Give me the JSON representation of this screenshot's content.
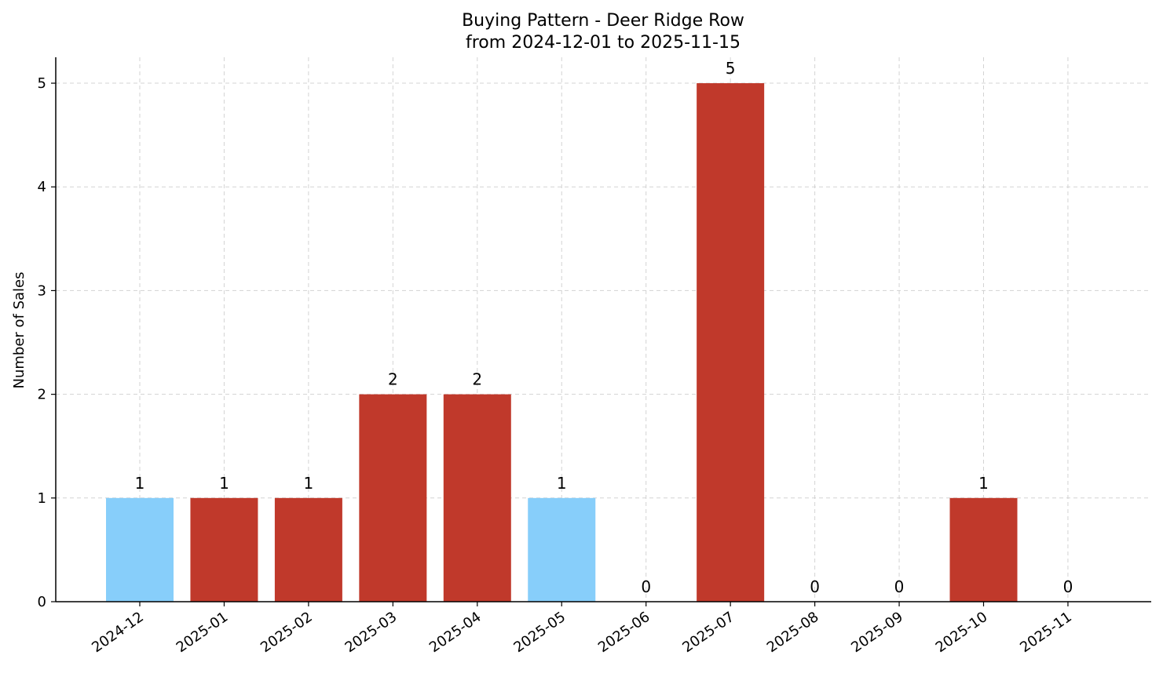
{
  "chart_data": {
    "type": "bar",
    "title_line1": "Buying Pattern - Deer Ridge Row",
    "title_line2": "from 2024-12-01 to 2025-11-15",
    "xlabel": "",
    "ylabel": "Number of Sales",
    "categories": [
      "2024-12",
      "2025-01",
      "2025-02",
      "2025-03",
      "2025-04",
      "2025-05",
      "2025-06",
      "2025-07",
      "2025-08",
      "2025-09",
      "2025-10",
      "2025-11"
    ],
    "values": [
      1,
      1,
      1,
      2,
      2,
      1,
      0,
      5,
      0,
      0,
      1,
      0
    ],
    "bar_colors": [
      "#87CEFA",
      "#C0392B",
      "#C0392B",
      "#C0392B",
      "#C0392B",
      "#87CEFA",
      "#C0392B",
      "#C0392B",
      "#C0392B",
      "#C0392B",
      "#C0392B",
      "#C0392B"
    ],
    "yticks": [
      0,
      1,
      2,
      3,
      4,
      5
    ],
    "ylim": [
      0,
      5.25
    ],
    "grid": true,
    "legend": "none"
  }
}
